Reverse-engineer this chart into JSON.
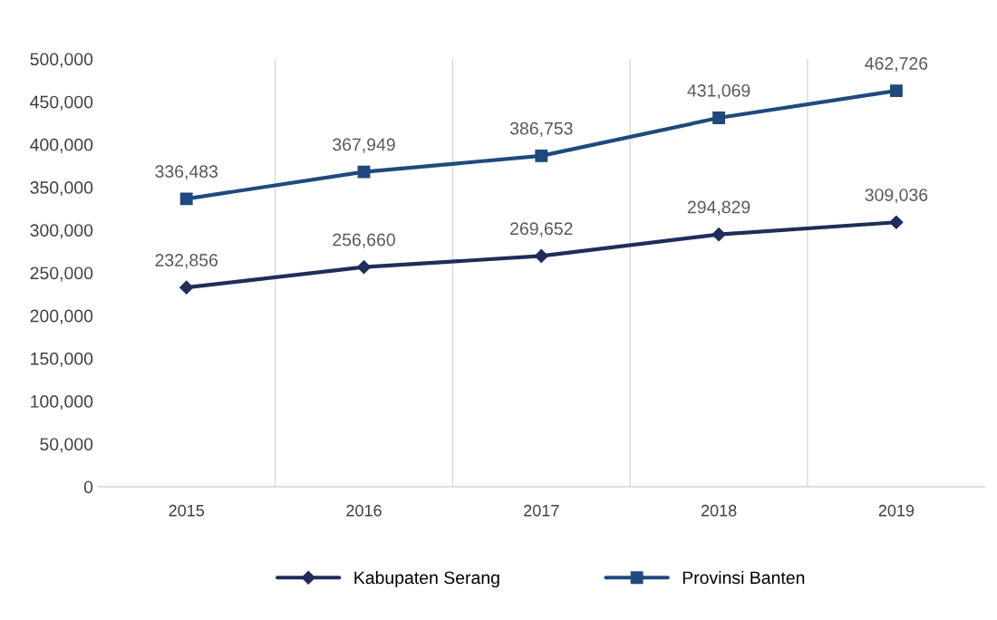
{
  "chart_data": {
    "type": "line",
    "categories": [
      "2015",
      "2016",
      "2017",
      "2018",
      "2019"
    ],
    "series": [
      {
        "name": "Kabupaten Serang",
        "color": "#1f2d5a",
        "marker": "diamond",
        "values": [
          232856,
          256660,
          269652,
          294829,
          309036
        ],
        "value_labels": [
          "232,856",
          "256,660",
          "269,652",
          "294,829",
          "309,036"
        ]
      },
      {
        "name": "Provinsi Banten",
        "color": "#1f4a7e",
        "marker": "square",
        "values": [
          336483,
          367949,
          386753,
          431069,
          462726
        ],
        "value_labels": [
          "336,483",
          "367,949",
          "386,753",
          "431,069",
          "462,726"
        ]
      }
    ],
    "ylim": [
      0,
      500000
    ],
    "yticks": [
      {
        "value": 0,
        "label": "0"
      },
      {
        "value": 50000,
        "label": "50,000"
      },
      {
        "value": 100000,
        "label": "100,000"
      },
      {
        "value": 150000,
        "label": "150,000"
      },
      {
        "value": 200000,
        "label": "200,000"
      },
      {
        "value": 250000,
        "label": "250,000"
      },
      {
        "value": 300000,
        "label": "300,000"
      },
      {
        "value": 350000,
        "label": "350,000"
      },
      {
        "value": 400000,
        "label": "400,000"
      },
      {
        "value": 450000,
        "label": "450,000"
      },
      {
        "value": 500000,
        "label": "500,000"
      }
    ],
    "grid": "x",
    "legend": "bottom",
    "line_style": "solid"
  }
}
